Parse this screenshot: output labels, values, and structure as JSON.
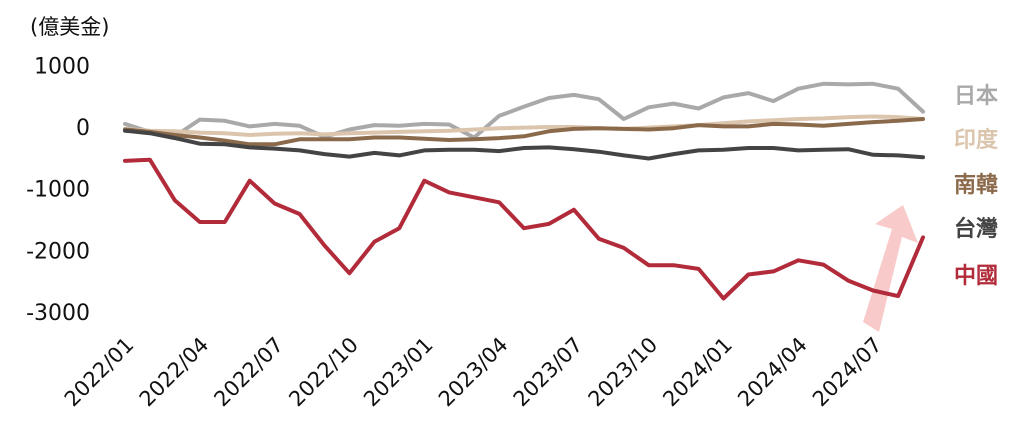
{
  "chart_data": {
    "type": "line",
    "unit_label": "(億美金)",
    "x": [
      "2022/01",
      "2022/02",
      "2022/03",
      "2022/04",
      "2022/05",
      "2022/06",
      "2022/07",
      "2022/08",
      "2022/09",
      "2022/10",
      "2022/11",
      "2022/12",
      "2023/01",
      "2023/02",
      "2023/03",
      "2023/04",
      "2023/05",
      "2023/06",
      "2023/07",
      "2023/08",
      "2023/09",
      "2023/10",
      "2023/11",
      "2023/12",
      "2024/01",
      "2024/02",
      "2024/03",
      "2024/04",
      "2024/05",
      "2024/06",
      "2024/07",
      "2024/08",
      "2024/09"
    ],
    "x_tick_labels": [
      "2022/01",
      "2022/04",
      "2022/07",
      "2022/10",
      "2023/01",
      "2023/04",
      "2023/07",
      "2023/10",
      "2024/01",
      "2024/04",
      "2024/07"
    ],
    "x_tick_index": [
      0,
      3,
      6,
      9,
      12,
      15,
      18,
      21,
      24,
      27,
      30
    ],
    "y_ticks": [
      1000,
      0,
      -1000,
      -2000,
      -3000
    ],
    "ylim": [
      -3300,
      1300
    ],
    "series": [
      {
        "name": "日本",
        "color": "#a9a9a9",
        "values": [
          50,
          -80,
          -150,
          120,
          100,
          10,
          50,
          20,
          -160,
          -40,
          30,
          20,
          50,
          40,
          -170,
          180,
          330,
          470,
          520,
          450,
          130,
          320,
          380,
          300,
          480,
          550,
          420,
          620,
          700,
          690,
          700,
          620,
          250
        ]
      },
      {
        "name": "印度",
        "color": "#dcc5ad",
        "values": [
          -30,
          -60,
          -70,
          -90,
          -100,
          -130,
          -110,
          -100,
          -120,
          -100,
          -90,
          -80,
          -70,
          -60,
          -40,
          -20,
          -10,
          0,
          0,
          -20,
          -30,
          -10,
          10,
          30,
          60,
          90,
          110,
          130,
          140,
          160,
          170,
          160,
          130
        ]
      },
      {
        "name": "南韓",
        "color": "#8b6a4c",
        "values": [
          -40,
          -80,
          -130,
          -170,
          -220,
          -280,
          -280,
          -200,
          -200,
          -200,
          -170,
          -170,
          -190,
          -210,
          -200,
          -180,
          -150,
          -70,
          -30,
          -20,
          -30,
          -40,
          -20,
          30,
          10,
          10,
          50,
          40,
          20,
          50,
          80,
          100,
          130
        ]
      },
      {
        "name": "台灣",
        "color": "#444444",
        "values": [
          -60,
          -100,
          -180,
          -270,
          -280,
          -330,
          -350,
          -380,
          -440,
          -480,
          -420,
          -460,
          -380,
          -370,
          -370,
          -390,
          -340,
          -330,
          -360,
          -400,
          -460,
          -510,
          -440,
          -380,
          -370,
          -340,
          -340,
          -380,
          -370,
          -360,
          -450,
          -460,
          -490
        ]
      },
      {
        "name": "中國",
        "color": "#b22b3a",
        "values": [
          -550,
          -530,
          -1190,
          -1540,
          -1540,
          -870,
          -1240,
          -1410,
          -1920,
          -2370,
          -1860,
          -1640,
          -870,
          -1060,
          -1140,
          -1220,
          -1640,
          -1570,
          -1340,
          -1810,
          -1960,
          -2240,
          -2240,
          -2300,
          -2780,
          -2390,
          -2340,
          -2160,
          -2230,
          -2490,
          -2650,
          -2740,
          -1790
        ]
      }
    ]
  }
}
